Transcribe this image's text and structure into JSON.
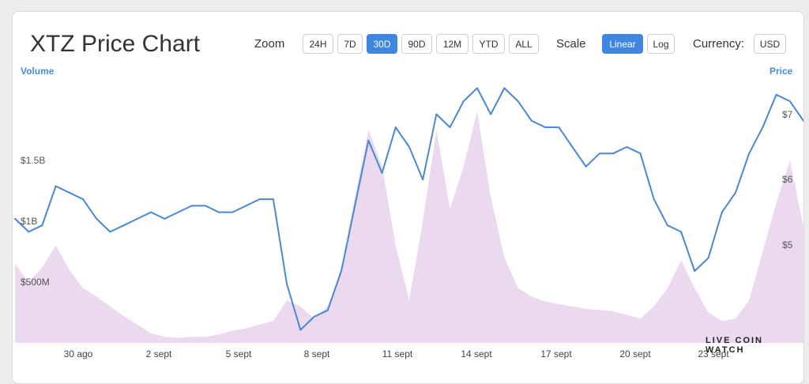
{
  "header": {
    "title": "XTZ Price Chart"
  },
  "controls": {
    "zoom_label": "Zoom",
    "zoom_options": [
      "24H",
      "7D",
      "30D",
      "90D",
      "12M",
      "YTD",
      "ALL"
    ],
    "zoom_active": "30D",
    "scale_label": "Scale",
    "scale_options": [
      "Linear",
      "Log"
    ],
    "scale_active": "Linear",
    "currency_label": "Currency:",
    "currency_value": "USD"
  },
  "colors": {
    "accent": "#3f86e0",
    "price_line": "#4a87d4",
    "volume_fill": "#ead9ef"
  },
  "watermark": "LIVE COIN WATCH",
  "chart_data": {
    "type": "line",
    "xlabel": "",
    "left_axis_title": "Volume",
    "right_axis_title": "Price",
    "x_ticks": [
      "30 ago",
      "2 sept",
      "5 sept",
      "8 sept",
      "11 sept",
      "14 sept",
      "17 sept",
      "20 sept",
      "23 sept"
    ],
    "volume_ticks": [
      "$500M",
      "$1B",
      "$1.5B"
    ],
    "price_ticks": [
      "$5",
      "$6",
      "$7"
    ],
    "x_range": [
      0,
      29
    ],
    "volume_range": [
      0,
      2.2
    ],
    "price_range": [
      3.5,
      7.6
    ],
    "grid": false,
    "series": [
      {
        "name": "Price",
        "axis": "right",
        "x": [
          0,
          0.5,
          1,
          1.5,
          2,
          2.5,
          3,
          3.5,
          4,
          4.5,
          5,
          5.5,
          6,
          6.5,
          7,
          7.5,
          8,
          8.5,
          9,
          9.5,
          10,
          10.5,
          11,
          11.5,
          12,
          12.5,
          13,
          13.5,
          14,
          14.5,
          15,
          15.5,
          16,
          16.5,
          17,
          17.5,
          18,
          18.5,
          19,
          19.5,
          20,
          20.5,
          21,
          21.5,
          22,
          22.5,
          23,
          23.5,
          24,
          24.5,
          25,
          25.5,
          26,
          26.5,
          27,
          27.5,
          28,
          28.5,
          29
        ],
        "values": [
          5.4,
          5.2,
          5.3,
          5.9,
          5.8,
          5.7,
          5.4,
          5.2,
          5.3,
          5.4,
          5.5,
          5.4,
          5.5,
          5.6,
          5.6,
          5.5,
          5.5,
          5.6,
          5.7,
          5.7,
          4.4,
          3.7,
          3.9,
          4.0,
          4.6,
          5.6,
          6.6,
          6.1,
          6.8,
          6.5,
          6.0,
          7.0,
          6.8,
          7.2,
          7.4,
          7.0,
          7.4,
          7.2,
          6.9,
          6.8,
          6.8,
          6.5,
          6.2,
          6.4,
          6.4,
          6.5,
          6.4,
          5.7,
          5.3,
          5.2,
          4.6,
          4.8,
          5.5,
          5.8,
          6.4,
          6.8,
          7.3,
          7.2,
          6.9
        ]
      },
      {
        "name": "Volume",
        "axis": "left",
        "x": [
          0,
          0.5,
          1,
          1.5,
          2,
          2.5,
          3,
          3.5,
          4,
          4.5,
          5,
          5.5,
          6,
          6.5,
          7,
          7.5,
          8,
          8.5,
          9,
          9.5,
          10,
          10.5,
          11,
          11.5,
          12,
          12.5,
          13,
          13.5,
          14,
          14.5,
          15,
          15.5,
          16,
          16.5,
          17,
          17.5,
          18,
          18.5,
          19,
          19.5,
          20,
          20.5,
          21,
          21.5,
          22,
          22.5,
          23,
          23.5,
          24,
          24.5,
          25,
          25.5,
          26,
          26.5,
          27,
          27.5,
          28,
          28.5,
          29
        ],
        "values": [
          0.65,
          0.5,
          0.62,
          0.8,
          0.6,
          0.45,
          0.38,
          0.3,
          0.22,
          0.15,
          0.08,
          0.05,
          0.04,
          0.05,
          0.05,
          0.07,
          0.1,
          0.12,
          0.15,
          0.18,
          0.35,
          0.3,
          0.2,
          0.3,
          0.6,
          1.2,
          1.75,
          1.45,
          0.8,
          0.35,
          1.0,
          1.75,
          1.1,
          1.45,
          1.9,
          1.2,
          0.7,
          0.45,
          0.38,
          0.34,
          0.32,
          0.3,
          0.28,
          0.27,
          0.26,
          0.23,
          0.2,
          0.3,
          0.45,
          0.68,
          0.45,
          0.25,
          0.18,
          0.2,
          0.35,
          0.75,
          1.15,
          1.5,
          0.95
        ]
      }
    ]
  }
}
